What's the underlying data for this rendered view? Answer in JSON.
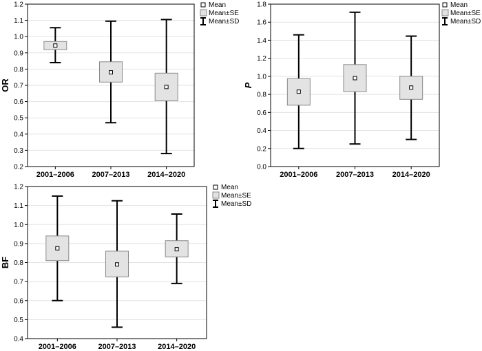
{
  "chart_data": [
    {
      "type": "box",
      "ylabel": "OR",
      "ylabel_italic": false,
      "ylim": [
        0.2,
        1.2
      ],
      "yticks": [
        "0.2",
        "0.3",
        "0.4",
        "0.5",
        "0.6",
        "0.7",
        "0.8",
        "0.9",
        "1.0",
        "1.1",
        "1.2"
      ],
      "yticks_values": [
        0.2,
        0.3,
        0.4,
        0.5,
        0.6,
        0.7,
        0.8,
        0.9,
        1.0,
        1.1,
        1.2
      ],
      "categories": [
        "2001–2006",
        "2007–2013",
        "2014–2020"
      ],
      "mean": [
        0.945,
        0.78,
        0.69
      ],
      "se_low": [
        0.92,
        0.72,
        0.605
      ],
      "se_high": [
        0.97,
        0.845,
        0.775
      ],
      "sd_low": [
        0.84,
        0.47,
        0.28
      ],
      "sd_high": [
        1.055,
        1.095,
        1.105
      ],
      "grid": true,
      "legend": [
        "Mean",
        "Mean±SE",
        "Mean±SD"
      ]
    },
    {
      "type": "box",
      "ylabel": "P",
      "ylabel_italic": true,
      "ylim": [
        0.0,
        1.8
      ],
      "yticks": [
        "0.0",
        "0.2",
        "0.4",
        "0.6",
        "0.8",
        "1.0",
        "1.2",
        "1.4",
        "1.6",
        "1.8"
      ],
      "yticks_values": [
        0.0,
        0.2,
        0.4,
        0.6,
        0.8,
        1.0,
        1.2,
        1.4,
        1.6,
        1.8
      ],
      "categories": [
        "2001–2006",
        "2007–2013",
        "2014–2020"
      ],
      "mean": [
        0.83,
        0.98,
        0.875
      ],
      "se_low": [
        0.68,
        0.83,
        0.745
      ],
      "se_high": [
        0.975,
        1.13,
        1.0
      ],
      "sd_low": [
        0.2,
        0.25,
        0.3
      ],
      "sd_high": [
        1.46,
        1.71,
        1.445
      ],
      "grid": true,
      "legend": [
        "Mean",
        "Mean±SE",
        "Mean±SD"
      ]
    },
    {
      "type": "box",
      "ylabel": "BF",
      "ylabel_italic": false,
      "ylim": [
        0.4,
        1.2
      ],
      "yticks": [
        "0.4",
        "0.5",
        "0.6",
        "0.7",
        "0.8",
        "0.9",
        "1.0",
        "1.1",
        "1.2"
      ],
      "yticks_values": [
        0.4,
        0.5,
        0.6,
        0.7,
        0.8,
        0.9,
        1.0,
        1.1,
        1.2
      ],
      "categories": [
        "2001–2006",
        "2007–2013",
        "2014–2020"
      ],
      "mean": [
        0.875,
        0.79,
        0.87
      ],
      "se_low": [
        0.81,
        0.725,
        0.83
      ],
      "se_high": [
        0.94,
        0.86,
        0.915
      ],
      "sd_low": [
        0.6,
        0.46,
        0.69
      ],
      "sd_high": [
        1.15,
        1.125,
        1.055
      ],
      "grid": true,
      "legend": [
        "Mean",
        "Mean±SE",
        "Mean±SD"
      ]
    }
  ]
}
